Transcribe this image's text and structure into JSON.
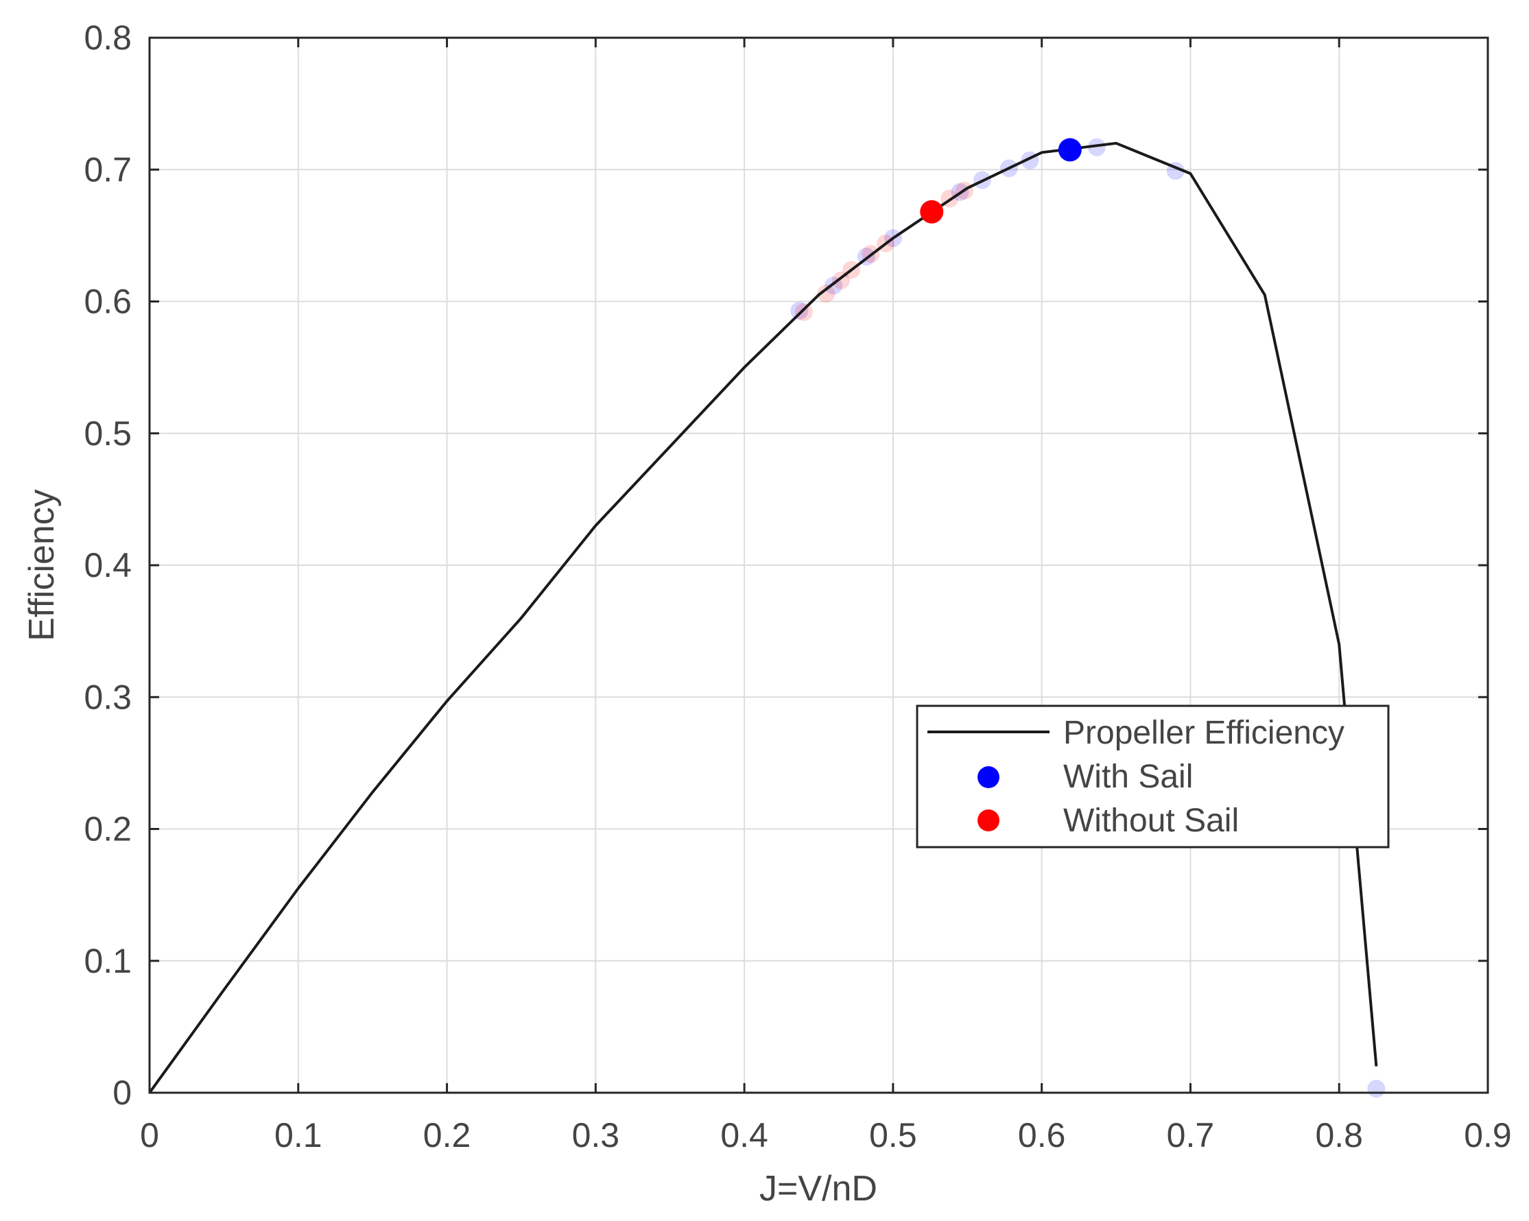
{
  "chart_data": {
    "type": "line",
    "xlabel": "J=V/nD",
    "ylabel": "Efficiency",
    "xlim": [
      0,
      0.9
    ],
    "ylim": [
      0,
      0.8
    ],
    "xticks": [
      "0",
      "0.1",
      "0.2",
      "0.3",
      "0.4",
      "0.5",
      "0.6",
      "0.7",
      "0.8",
      "0.9"
    ],
    "yticks": [
      "0",
      "0.1",
      "0.2",
      "0.3",
      "0.4",
      "0.5",
      "0.6",
      "0.7",
      "0.8"
    ],
    "xtick_values": [
      0,
      0.1,
      0.2,
      0.3,
      0.4,
      0.5,
      0.6,
      0.7,
      0.8,
      0.9
    ],
    "ytick_values": [
      0,
      0.1,
      0.2,
      0.3,
      0.4,
      0.5,
      0.6,
      0.7,
      0.8
    ],
    "grid": true,
    "legend_position": "center-right",
    "series": [
      {
        "name": "Propeller Efficiency",
        "kind": "line",
        "color": "#1a1a1a",
        "x": [
          0,
          0.05,
          0.1,
          0.15,
          0.2,
          0.25,
          0.3,
          0.35,
          0.4,
          0.45,
          0.5,
          0.55,
          0.6,
          0.65,
          0.7,
          0.75,
          0.8,
          0.825
        ],
        "y": [
          0,
          0.078,
          0.155,
          0.228,
          0.297,
          0.36,
          0.43,
          0.49,
          0.55,
          0.605,
          0.648,
          0.686,
          0.713,
          0.72,
          0.697,
          0.605,
          0.34,
          0.02
        ]
      },
      {
        "name": "With Sail",
        "kind": "scatter",
        "color": "#0000ff",
        "x": [
          0.619
        ],
        "y": [
          0.715
        ]
      },
      {
        "name": "Without Sail",
        "kind": "scatter",
        "color": "#ff0000",
        "x": [
          0.526
        ],
        "y": [
          0.668
        ]
      }
    ],
    "faded_points": [
      {
        "color": "#0000ff",
        "x": 0.437,
        "y": 0.593
      },
      {
        "color": "#0000ff",
        "x": 0.46,
        "y": 0.612
      },
      {
        "color": "#0000ff",
        "x": 0.482,
        "y": 0.634
      },
      {
        "color": "#0000ff",
        "x": 0.5,
        "y": 0.648
      },
      {
        "color": "#0000ff",
        "x": 0.545,
        "y": 0.683
      },
      {
        "color": "#0000ff",
        "x": 0.56,
        "y": 0.692
      },
      {
        "color": "#0000ff",
        "x": 0.578,
        "y": 0.701
      },
      {
        "color": "#0000ff",
        "x": 0.592,
        "y": 0.707
      },
      {
        "color": "#0000ff",
        "x": 0.637,
        "y": 0.717
      },
      {
        "color": "#0000ff",
        "x": 0.69,
        "y": 0.699
      },
      {
        "color": "#0000ff",
        "x": 0.825,
        "y": 0.003
      },
      {
        "color": "#ff0000",
        "x": 0.44,
        "y": 0.592
      },
      {
        "color": "#ff0000",
        "x": 0.455,
        "y": 0.606
      },
      {
        "color": "#ff0000",
        "x": 0.465,
        "y": 0.616
      },
      {
        "color": "#ff0000",
        "x": 0.472,
        "y": 0.624
      },
      {
        "color": "#ff0000",
        "x": 0.485,
        "y": 0.636
      },
      {
        "color": "#ff0000",
        "x": 0.495,
        "y": 0.644
      },
      {
        "color": "#ff0000",
        "x": 0.538,
        "y": 0.678
      },
      {
        "color": "#ff0000",
        "x": 0.548,
        "y": 0.684
      }
    ]
  }
}
